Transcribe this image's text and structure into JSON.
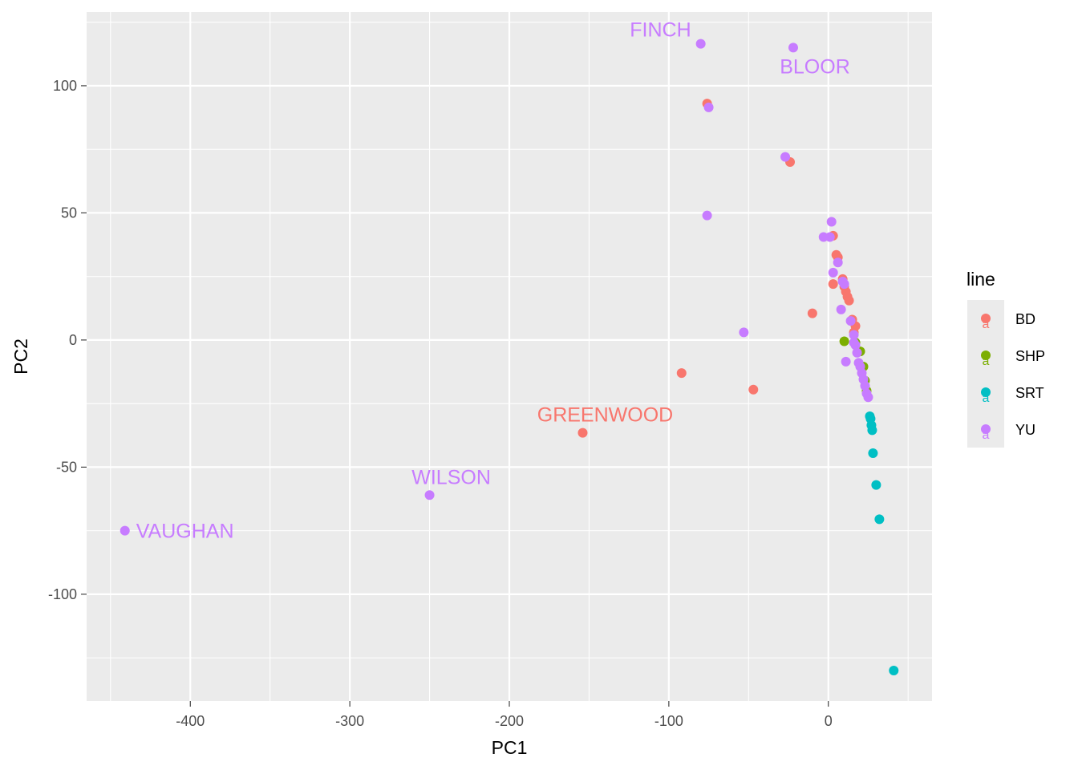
{
  "chart_data": {
    "type": "scatter",
    "title": "",
    "xlabel": "PC1",
    "ylabel": "PC2",
    "xlim": [
      -465,
      65
    ],
    "ylim": [
      -142,
      129
    ],
    "x_ticks": [
      -400,
      -300,
      -200,
      -100,
      0
    ],
    "y_ticks": [
      -100,
      -50,
      0,
      50,
      100
    ],
    "x_tick_labels": [
      "-400",
      "-300",
      "-200",
      "-100",
      "0"
    ],
    "y_tick_labels": [
      "-100",
      "-50",
      "0",
      "50",
      "100"
    ],
    "grid": true,
    "legend": {
      "title": "line",
      "position": "right"
    },
    "series": [
      {
        "name": "BD",
        "color": "#F8766D",
        "points": [
          [
            -76,
            93
          ],
          [
            -24,
            70
          ],
          [
            3,
            41
          ],
          [
            5,
            33.5
          ],
          [
            6,
            32.5
          ],
          [
            9,
            24
          ],
          [
            10,
            21
          ],
          [
            11,
            19
          ],
          [
            12,
            17
          ],
          [
            13,
            15.5
          ],
          [
            3,
            22
          ],
          [
            -10,
            10.5
          ],
          [
            15,
            8
          ],
          [
            17,
            5.5
          ],
          [
            16,
            3
          ],
          [
            -92,
            -13
          ],
          [
            -47,
            -19.5
          ],
          [
            -154,
            -36.5
          ]
        ]
      },
      {
        "name": "SHP",
        "color": "#7CAE00",
        "points": [
          [
            10,
            -0.5
          ],
          [
            17,
            -1
          ],
          [
            20,
            -4.5
          ],
          [
            22,
            -10.5
          ],
          [
            23,
            -16
          ],
          [
            24,
            -20
          ]
        ]
      },
      {
        "name": "SRT",
        "color": "#00BFC4",
        "points": [
          [
            26,
            -30
          ],
          [
            26.5,
            -31
          ],
          [
            27,
            -33.5
          ],
          [
            27.5,
            -35.5
          ],
          [
            28,
            -44.5
          ],
          [
            30,
            -57
          ],
          [
            32,
            -70.5
          ],
          [
            41,
            -130
          ]
        ]
      },
      {
        "name": "YU",
        "color": "#C77CFF",
        "points": [
          [
            -80,
            116.5
          ],
          [
            -22,
            115
          ],
          [
            -75,
            91.5
          ],
          [
            -27,
            72
          ],
          [
            -76,
            49
          ],
          [
            2,
            46.5
          ],
          [
            -3,
            40.5
          ],
          [
            1,
            40.5
          ],
          [
            6,
            30.5
          ],
          [
            3,
            26.5
          ],
          [
            9,
            23
          ],
          [
            10,
            22
          ],
          [
            8,
            12
          ],
          [
            14,
            7.5
          ],
          [
            16,
            2
          ],
          [
            -53,
            3
          ],
          [
            16,
            -1
          ],
          [
            17,
            -2
          ],
          [
            18,
            -5
          ],
          [
            11,
            -8.5
          ],
          [
            19,
            -9
          ],
          [
            20,
            -10.5
          ],
          [
            21,
            -13
          ],
          [
            22,
            -15.5
          ],
          [
            23,
            -18
          ],
          [
            24,
            -21
          ],
          [
            25,
            -22.5
          ],
          [
            -250,
            -61
          ],
          [
            -441,
            -75
          ]
        ]
      }
    ],
    "annotations": [
      {
        "text": "FINCH",
        "x": -80,
        "y": 116.5,
        "series": "YU",
        "anchor": "end",
        "dx": -12,
        "dy": -17
      },
      {
        "text": "BLOOR",
        "x": -22,
        "y": 115,
        "series": "YU",
        "anchor": "middle",
        "dx": 27,
        "dy": 24
      },
      {
        "text": "GREENWOOD",
        "x": -154,
        "y": -36.5,
        "series": "BD",
        "anchor": "middle",
        "dx": 28,
        "dy": -22
      },
      {
        "text": "WILSON",
        "x": -250,
        "y": -61,
        "series": "YU",
        "anchor": "middle",
        "dx": 27,
        "dy": -22
      },
      {
        "text": "VAUGHAN",
        "x": -441,
        "y": -75,
        "series": "YU",
        "anchor": "start",
        "dx": 14,
        "dy": 1
      }
    ]
  }
}
